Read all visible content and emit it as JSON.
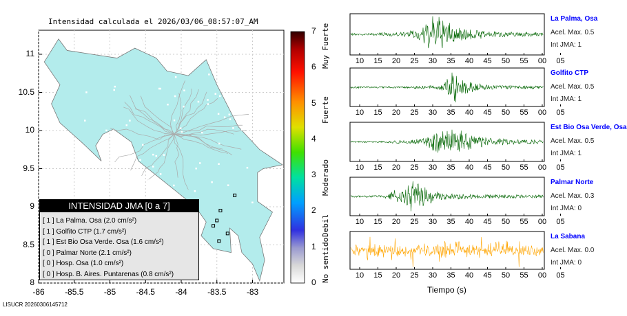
{
  "title": "Intensidad calculada el 2026/03/06_08:57:07_AM",
  "map": {
    "lon_ticks": [
      "-86",
      "-85.5",
      "-85",
      "-84.5",
      "-84",
      "-83.5",
      "-83"
    ],
    "lat_ticks": [
      "11",
      "10.5",
      "10",
      "9.5",
      "9",
      "8.5",
      "8"
    ],
    "land_color": "#b3ecec"
  },
  "legend": {
    "title": "INTENSIDAD JMA [0 a 7]",
    "items": [
      "[ 1 ]  La Palma. Osa (2.0 cm/s²)",
      "[ 1 ]  Golfito CTP (1.7 cm/s²)",
      "[ 1 ]  Est Bio Osa Verde. Osa (1.6 cm/s²)",
      "[ 0 ]  Palmar Norte (2.1 cm/s²)",
      "[ 0 ]  Hosp. Osa (1.0 cm/s²)",
      "[ 0 ]  Hosp. B. Aires. Puntarenas (0.8 cm/s²)"
    ]
  },
  "colorbar": {
    "labels": [
      "0",
      "1",
      "2",
      "3",
      "4",
      "5",
      "6",
      "7"
    ],
    "categories": [
      "No sentido",
      "Debil",
      "Moderado",
      "Fuerte",
      "Muy Fuerte"
    ]
  },
  "stations": [
    {
      "name": "La Palma, Osa",
      "acel": "Acel. Max. 0.5",
      "int": "Int JMA: 1",
      "color": "#006400"
    },
    {
      "name": "Golfito CTP",
      "acel": "Acel. Max. 0.5",
      "int": "Int JMA: 1",
      "color": "#006400"
    },
    {
      "name": "Est Bio Osa Verde, Osa",
      "acel": "Acel. Max. 0.5",
      "int": "Int JMA: 1",
      "color": "#006400"
    },
    {
      "name": "Palmar Norte",
      "acel": "Acel. Max. 0.3",
      "int": "Int JMA: 0",
      "color": "#006400"
    },
    {
      "name": "La Sabana",
      "acel": "Acel. Max. 0.0",
      "int": "Int JMA: 0",
      "color": "#ffa500"
    }
  ],
  "time_ticks": [
    "10",
    "15",
    "20",
    "25",
    "30",
    "35",
    "40",
    "45",
    "50",
    "55",
    "00",
    "05"
  ],
  "xlabel": "Tiempo (s)",
  "footer": "LISUCR 20260306145712",
  "chart_data": {
    "type": "line",
    "title": "Intensidad calculada el 2026/03/06_08:57:07_AM",
    "xlabel": "Tiempo (s)",
    "x_ticks": [
      "10",
      "15",
      "20",
      "25",
      "30",
      "35",
      "40",
      "45",
      "50",
      "55",
      "00",
      "05"
    ],
    "series": [
      {
        "name": "La Palma, Osa",
        "peak_time_s": 31,
        "acel_max": 0.5,
        "int_jma": 1
      },
      {
        "name": "Golfito CTP",
        "peak_time_s": 35,
        "acel_max": 0.5,
        "int_jma": 1
      },
      {
        "name": "Est Bio Osa Verde, Osa",
        "peak_time_s": 34,
        "acel_max": 0.5,
        "int_jma": 1
      },
      {
        "name": "Palmar Norte",
        "peak_time_s": 24,
        "acel_max": 0.3,
        "int_jma": 0
      },
      {
        "name": "La Sabana",
        "peak_time_s": null,
        "acel_max": 0.0,
        "int_jma": 0
      }
    ]
  }
}
